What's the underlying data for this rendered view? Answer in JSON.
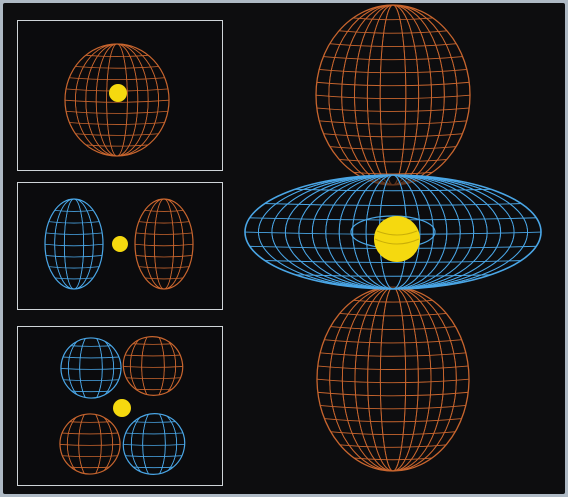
{
  "figure": {
    "background_color": "#0d0d0f",
    "frame_color": "#cfd4d8",
    "nucleus_color": "#f5d90f",
    "positive_lobe_color": "#c8652e",
    "negative_lobe_color": "#4aa6e6",
    "panels": [
      {
        "name": "s-orbital",
        "shape": "sphere",
        "phases": [
          "positive"
        ]
      },
      {
        "name": "p-orbital",
        "shape": "dumbbell",
        "phases": [
          "negative",
          "positive"
        ]
      },
      {
        "name": "d-orbital-cloverleaf",
        "shape": "four-lobe cloverleaf",
        "phases": [
          "negative",
          "positive",
          "positive",
          "negative"
        ]
      },
      {
        "name": "dz2-orbital",
        "shape": "two lobes with torus",
        "phases": [
          "positive",
          "negative",
          "positive"
        ]
      }
    ]
  }
}
